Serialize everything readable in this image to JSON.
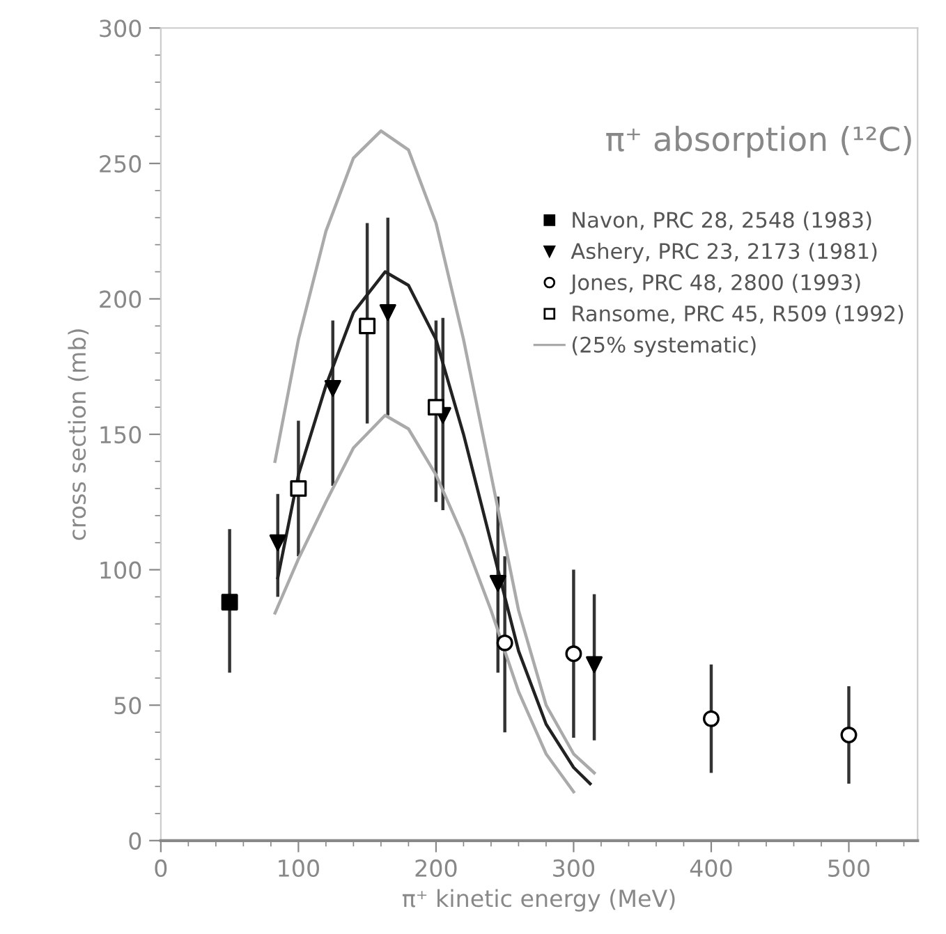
{
  "chart_data": {
    "type": "scatter",
    "title": "π⁺ absorption (¹²C)",
    "xlabel": "π⁺ kinetic energy (MeV)",
    "ylabel": "cross section (mb)",
    "xlim": [
      0,
      550
    ],
    "xticks": [
      0,
      100,
      200,
      300,
      400,
      500
    ],
    "ylim": [
      0,
      300
    ],
    "yticks": [
      0,
      50,
      100,
      150,
      200,
      250,
      300
    ],
    "grid": false,
    "legend": "top right",
    "series": [
      {
        "name": "Navon, PRC 28, 2548 (1983)",
        "marker": "square",
        "color": "#000000",
        "x": [
          50
        ],
        "values": [
          88
        ],
        "errors": [
          [
            62,
            115
          ]
        ]
      },
      {
        "name": "Ashery, PRC 23, 2173 (1981)",
        "marker": "triangle",
        "color": "#000000",
        "x": [
          85,
          125,
          165,
          205,
          245,
          315
        ],
        "values": [
          110,
          167,
          195,
          157,
          95,
          65
        ],
        "errors": [
          [
            90,
            128
          ],
          [
            131,
            192
          ],
          [
            157,
            230
          ],
          [
            122,
            193
          ],
          [
            62,
            127
          ],
          [
            37,
            91
          ]
        ]
      },
      {
        "name": "Jones, PRC 48, 2800 (1993)",
        "marker": "circle",
        "color": "#ffffff",
        "x": [
          250,
          300,
          400,
          500
        ],
        "values": [
          73,
          69,
          45,
          39
        ],
        "errors": [
          [
            40,
            105
          ],
          [
            38,
            100
          ],
          [
            25,
            65
          ],
          [
            21,
            57
          ]
        ]
      },
      {
        "name": "Ransome, PRC 45, R509 (1992)",
        "marker": "square",
        "color": "#ffffff",
        "x": [
          100,
          150,
          200
        ],
        "values": [
          130,
          190,
          160
        ],
        "errors": [
          [
            105,
            155
          ],
          [
            154,
            228
          ],
          [
            125,
            192
          ]
        ]
      },
      {
        "type": "line",
        "color": "#222222",
        "x": [
          85,
          100,
          120,
          140,
          163,
          180,
          200,
          220,
          240,
          260,
          280,
          300,
          312
        ],
        "values": [
          97,
          135,
          168,
          195,
          210,
          205,
          185,
          150,
          110,
          70,
          43,
          27,
          21
        ]
      },
      {
        "name": "(25% systematic)",
        "type": "line",
        "color": "#aaaaaa",
        "x": [
          83,
          100,
          120,
          140,
          160,
          180,
          200,
          220,
          240,
          260,
          280,
          300,
          315
        ],
        "values": [
          140,
          185,
          225,
          252,
          262,
          255,
          228,
          185,
          135,
          85,
          50,
          32,
          25
        ]
      },
      {
        "type": "line",
        "color": "#aaaaaa",
        "x": [
          83,
          100,
          120,
          140,
          163,
          180,
          200,
          220,
          240,
          260,
          280,
          300
        ],
        "values": [
          84,
          104,
          125,
          145,
          157,
          152,
          135,
          112,
          85,
          55,
          32,
          18
        ]
      }
    ]
  }
}
